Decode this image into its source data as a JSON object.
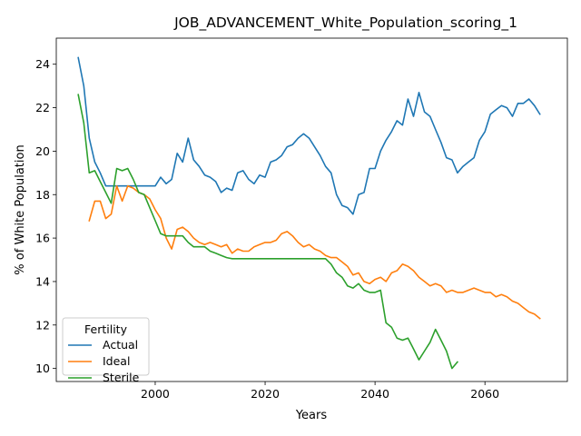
{
  "chart_data": {
    "type": "line",
    "title": "JOB_ADVANCEMENT_White_Population_scoring_1",
    "xlabel": "Years",
    "ylabel": "% of White Population",
    "xlim": [
      1982,
      2075
    ],
    "ylim": [
      9.4,
      25.2
    ],
    "xticks": [
      2000,
      2020,
      2040,
      2060
    ],
    "yticks": [
      10,
      12,
      14,
      16,
      18,
      20,
      22,
      24
    ],
    "grid": false,
    "legend": {
      "title": "Fertility",
      "placement": "lower-left"
    },
    "series": [
      {
        "name": "Actual",
        "color": "#1f77b4",
        "x": [
          1986,
          1987,
          1988,
          1989,
          1990,
          1991,
          1992,
          1993,
          1994,
          1995,
          1996,
          1997,
          1998,
          1999,
          2000,
          2001,
          2002,
          2003,
          2004,
          2005,
          2006,
          2007,
          2008,
          2009,
          2010,
          2011,
          2012,
          2013,
          2014,
          2015,
          2016,
          2017,
          2018,
          2019,
          2020,
          2021,
          2022,
          2023,
          2024,
          2025,
          2026,
          2027,
          2028,
          2029,
          2030,
          2031,
          2032,
          2033,
          2034,
          2035,
          2036,
          2037,
          2038,
          2039,
          2040,
          2041,
          2042,
          2043,
          2044,
          2045,
          2046,
          2047,
          2048,
          2049,
          2050,
          2051,
          2052,
          2053,
          2054,
          2055,
          2056,
          2057,
          2058,
          2059,
          2060,
          2061,
          2062,
          2063,
          2064,
          2065,
          2066,
          2067,
          2068,
          2069,
          2070
        ],
        "y": [
          24.3,
          23.0,
          20.6,
          19.5,
          19.0,
          18.4,
          18.4,
          18.4,
          18.4,
          18.4,
          18.4,
          18.4,
          18.4,
          18.4,
          18.4,
          18.8,
          18.5,
          18.7,
          19.9,
          19.5,
          20.6,
          19.6,
          19.3,
          18.9,
          18.8,
          18.6,
          18.1,
          18.3,
          18.2,
          19.0,
          19.1,
          18.7,
          18.5,
          18.9,
          18.8,
          19.5,
          19.6,
          19.8,
          20.2,
          20.3,
          20.6,
          20.8,
          20.6,
          20.2,
          19.8,
          19.3,
          19.0,
          18.0,
          17.5,
          17.4,
          17.1,
          18.0,
          18.1,
          19.2,
          19.2,
          20.0,
          20.5,
          20.9,
          21.4,
          21.2,
          22.4,
          21.6,
          22.7,
          21.8,
          21.6,
          21.0,
          20.4,
          19.7,
          19.6,
          19.0,
          19.3,
          19.5,
          19.7,
          20.5,
          20.9,
          21.7,
          21.9,
          22.1,
          22.0,
          21.6,
          22.2,
          22.2,
          22.4,
          22.1,
          21.7
        ]
      },
      {
        "name": "Ideal",
        "color": "#ff7f0e",
        "x": [
          1988,
          1989,
          1990,
          1991,
          1992,
          1993,
          1994,
          1995,
          1996,
          1997,
          1998,
          1999,
          2000,
          2001,
          2002,
          2003,
          2004,
          2005,
          2006,
          2007,
          2008,
          2009,
          2010,
          2011,
          2012,
          2013,
          2014,
          2015,
          2016,
          2017,
          2018,
          2019,
          2020,
          2021,
          2022,
          2023,
          2024,
          2025,
          2026,
          2027,
          2028,
          2029,
          2030,
          2031,
          2032,
          2033,
          2034,
          2035,
          2036,
          2037,
          2038,
          2039,
          2040,
          2041,
          2042,
          2043,
          2044,
          2045,
          2046,
          2047,
          2048,
          2049,
          2050,
          2051,
          2052,
          2053,
          2054,
          2055,
          2056,
          2057,
          2058,
          2059,
          2060,
          2061,
          2062,
          2063,
          2064,
          2065,
          2066,
          2067,
          2068,
          2069,
          2070
        ],
        "y": [
          16.8,
          17.7,
          17.7,
          16.9,
          17.1,
          18.4,
          17.7,
          18.4,
          18.3,
          18.1,
          18.0,
          17.8,
          17.3,
          16.9,
          16.0,
          15.5,
          16.4,
          16.5,
          16.3,
          16.0,
          15.8,
          15.7,
          15.8,
          15.7,
          15.6,
          15.7,
          15.3,
          15.5,
          15.4,
          15.4,
          15.6,
          15.7,
          15.8,
          15.8,
          15.9,
          16.2,
          16.3,
          16.1,
          15.8,
          15.6,
          15.7,
          15.5,
          15.4,
          15.2,
          15.1,
          15.1,
          14.9,
          14.7,
          14.3,
          14.4,
          14.0,
          13.9,
          14.1,
          14.2,
          14.0,
          14.4,
          14.5,
          14.8,
          14.7,
          14.5,
          14.2,
          14.0,
          13.8,
          13.9,
          13.8,
          13.5,
          13.6,
          13.5,
          13.5,
          13.6,
          13.7,
          13.6,
          13.5,
          13.5,
          13.3,
          13.4,
          13.3,
          13.1,
          13.0,
          12.8,
          12.6,
          12.5,
          12.3
        ]
      },
      {
        "name": "Sterile",
        "color": "#2ca02c",
        "x": [
          1986,
          1987,
          1988,
          1989,
          1990,
          1991,
          1992,
          1993,
          1994,
          1995,
          1996,
          1997,
          1998,
          1999,
          2000,
          2001,
          2002,
          2003,
          2004,
          2005,
          2006,
          2007,
          2008,
          2009,
          2010,
          2011,
          2012,
          2013,
          2014,
          2015,
          2016,
          2017,
          2018,
          2019,
          2020,
          2021,
          2022,
          2023,
          2024,
          2025,
          2026,
          2027,
          2028,
          2029,
          2030,
          2031,
          2032,
          2033,
          2034,
          2035,
          2036,
          2037,
          2038,
          2039,
          2040,
          2041,
          2042,
          2043,
          2044,
          2045,
          2046,
          2047,
          2048,
          2049,
          2050,
          2051,
          2052,
          2053,
          2054,
          2055
        ],
        "y": [
          22.6,
          21.3,
          19.0,
          19.1,
          18.6,
          18.1,
          17.6,
          19.2,
          19.1,
          19.2,
          18.7,
          18.1,
          18.0,
          17.4,
          16.8,
          16.2,
          16.1,
          16.1,
          16.1,
          16.1,
          15.8,
          15.6,
          15.6,
          15.6,
          15.4,
          15.3,
          15.2,
          15.1,
          15.05,
          15.05,
          15.05,
          15.05,
          15.05,
          15.05,
          15.05,
          15.05,
          15.05,
          15.05,
          15.05,
          15.05,
          15.05,
          15.05,
          15.05,
          15.05,
          15.05,
          15.05,
          14.8,
          14.4,
          14.2,
          13.8,
          13.7,
          13.9,
          13.6,
          13.5,
          13.5,
          13.6,
          12.1,
          11.9,
          11.4,
          11.3,
          11.4,
          10.9,
          10.4,
          10.8,
          11.2,
          11.8,
          11.3,
          10.8,
          10.0,
          10.3
        ]
      }
    ]
  }
}
